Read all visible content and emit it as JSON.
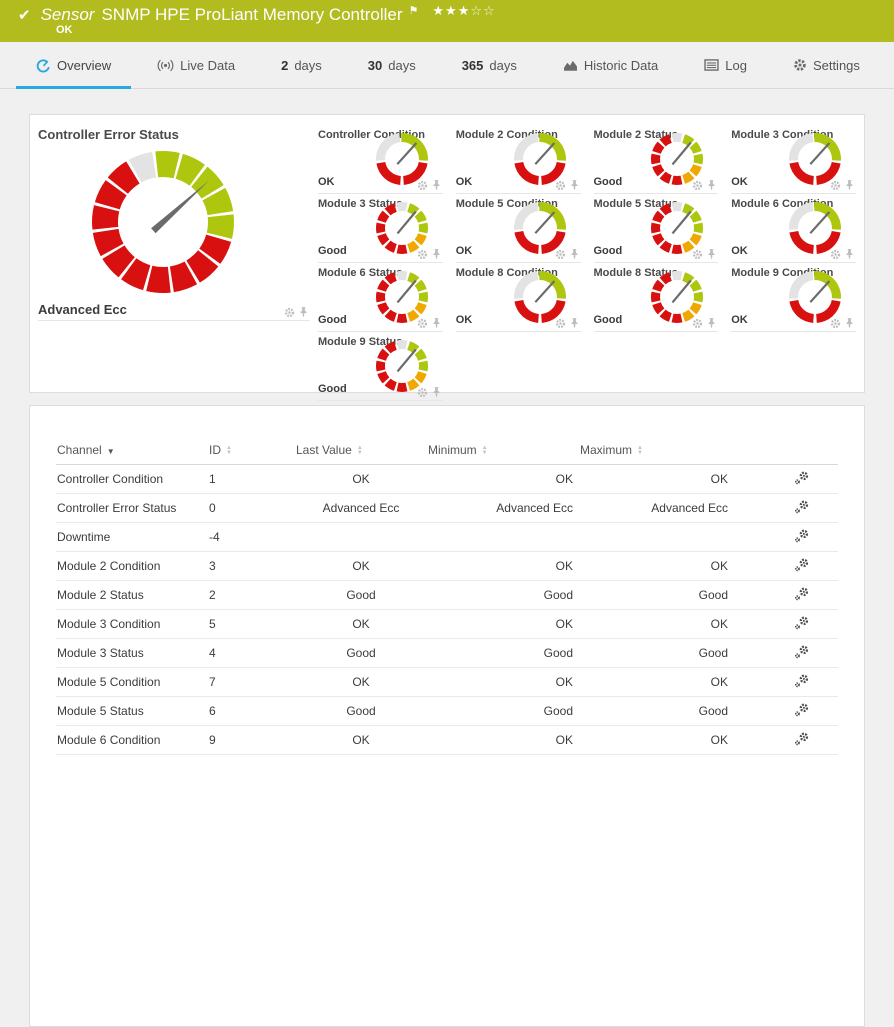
{
  "header": {
    "kind": "Sensor",
    "title": "SNMP HPE ProLiant Memory Controller",
    "status": "OK",
    "rating_filled": "★★★",
    "rating_empty": "☆☆",
    "bg_color": "#b2bc1e"
  },
  "tabs": [
    {
      "id": "overview",
      "label": "Overview",
      "icon": "gauge",
      "active": true
    },
    {
      "id": "live-data",
      "label": "Live Data",
      "icon": "broadcast",
      "active": false
    },
    {
      "id": "2-days",
      "num": "2",
      "label": "days",
      "active": false
    },
    {
      "id": "30-days",
      "num": "30",
      "label": "days",
      "active": false
    },
    {
      "id": "365-days",
      "num": "365",
      "label": "days",
      "active": false
    },
    {
      "id": "historic-data",
      "label": "Historic Data",
      "icon": "chart",
      "active": false
    },
    {
      "id": "log",
      "label": "Log",
      "icon": "log",
      "active": false
    },
    {
      "id": "settings",
      "label": "Settings",
      "icon": "gear",
      "active": false
    }
  ],
  "gauge_panel": {
    "big": {
      "title": "Controller Error Status",
      "value": "Advanced Ecc",
      "style": "big"
    },
    "cells": [
      {
        "title": "Controller Condition",
        "value": "OK",
        "style": "condition"
      },
      {
        "title": "Module 2 Condition",
        "value": "OK",
        "style": "condition"
      },
      {
        "title": "Module 2 Status",
        "value": "Good",
        "style": "status"
      },
      {
        "title": "Module 3 Condition",
        "value": "OK",
        "style": "condition"
      },
      {
        "title": "Module 3 Status",
        "value": "Good",
        "style": "status"
      },
      {
        "title": "Module 5 Condition",
        "value": "OK",
        "style": "condition"
      },
      {
        "title": "Module 5 Status",
        "value": "Good",
        "style": "status"
      },
      {
        "title": "Module 6 Condition",
        "value": "OK",
        "style": "condition"
      },
      {
        "title": "Module 6 Status",
        "value": "Good",
        "style": "status"
      },
      {
        "title": "Module 8 Condition",
        "value": "OK",
        "style": "condition"
      },
      {
        "title": "Module 8 Status",
        "value": "Good",
        "style": "status"
      },
      {
        "title": "Module 9 Condition",
        "value": "OK",
        "style": "condition"
      },
      {
        "title": "Module 9 Status",
        "value": "Good",
        "style": "status"
      }
    ]
  },
  "gauge_colors": {
    "gray": "#e3e3e3",
    "green": "#aec70e",
    "red": "#d91010",
    "yellow": "#f0a800",
    "needle": "#6b6b6b"
  },
  "gauge_styles": {
    "condition": {
      "needle": 42,
      "segments": [
        [
          "gray",
          -94,
          -6
        ],
        [
          "green",
          -2,
          94
        ],
        [
          "red",
          100,
          176
        ],
        [
          "red",
          184,
          260
        ]
      ]
    },
    "status": {
      "needle": 40,
      "segments": [
        [
          "gray",
          -12,
          12
        ],
        [
          "green",
          18,
          42
        ],
        [
          "green",
          48,
          72
        ],
        [
          "green",
          78,
          102
        ],
        [
          "yellow",
          108,
          132
        ],
        [
          "yellow",
          138,
          162
        ],
        [
          "red",
          168,
          192
        ],
        [
          "red",
          198,
          222
        ],
        [
          "red",
          228,
          252
        ],
        [
          "red",
          258,
          282
        ],
        [
          "red",
          288,
          312
        ],
        [
          "red",
          318,
          342
        ]
      ]
    },
    "big": {
      "needle": 48,
      "segments": [
        [
          "gray",
          -28.7,
          -8.8
        ],
        [
          "green",
          -6.2,
          13.7
        ],
        [
          "green",
          16.3,
          36.2
        ],
        [
          "green",
          38.8,
          58.7
        ],
        [
          "green",
          61.3,
          81.2
        ],
        [
          "green",
          83.8,
          103.7
        ],
        [
          "red",
          106.3,
          126.2
        ],
        [
          "red",
          128.8,
          148.7
        ],
        [
          "red",
          151.3,
          171.2
        ],
        [
          "red",
          173.8,
          193.7
        ],
        [
          "red",
          196.3,
          216.2
        ],
        [
          "red",
          218.8,
          238.7
        ],
        [
          "red",
          241.3,
          261.2
        ],
        [
          "red",
          263.8,
          283.7
        ],
        [
          "red",
          286.3,
          306.2
        ],
        [
          "red",
          308.8,
          328.7
        ]
      ]
    }
  },
  "table": {
    "columns": {
      "channel": "Channel",
      "id": "ID",
      "last_value": "Last Value",
      "minimum": "Minimum",
      "maximum": "Maximum"
    },
    "sorted_by": "channel",
    "rows": [
      {
        "channel": "Controller Condition",
        "id": "1",
        "last": "OK",
        "min": "OK",
        "max": "OK"
      },
      {
        "channel": "Controller Error Status",
        "id": "0",
        "last": "Advanced Ecc",
        "min": "Advanced Ecc",
        "max": "Advanced Ecc"
      },
      {
        "channel": "Downtime",
        "id": "-4",
        "last": "",
        "min": "",
        "max": ""
      },
      {
        "channel": "Module 2 Condition",
        "id": "3",
        "last": "OK",
        "min": "OK",
        "max": "OK"
      },
      {
        "channel": "Module 2 Status",
        "id": "2",
        "last": "Good",
        "min": "Good",
        "max": "Good"
      },
      {
        "channel": "Module 3 Condition",
        "id": "5",
        "last": "OK",
        "min": "OK",
        "max": "OK"
      },
      {
        "channel": "Module 3 Status",
        "id": "4",
        "last": "Good",
        "min": "Good",
        "max": "Good"
      },
      {
        "channel": "Module 5 Condition",
        "id": "7",
        "last": "OK",
        "min": "OK",
        "max": "OK"
      },
      {
        "channel": "Module 5 Status",
        "id": "6",
        "last": "Good",
        "min": "Good",
        "max": "Good"
      },
      {
        "channel": "Module 6 Condition",
        "id": "9",
        "last": "OK",
        "min": "OK",
        "max": "OK"
      }
    ]
  },
  "accent_blue": "#2ba7e0"
}
